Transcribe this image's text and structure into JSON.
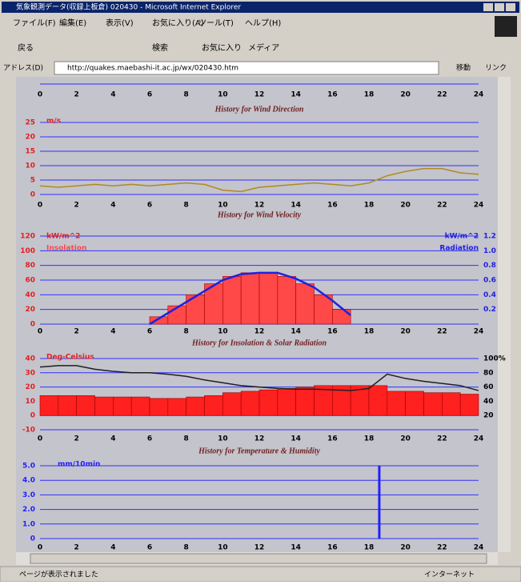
{
  "window": {
    "title": "気象観測データ(収録上板倉) 020430 - Microsoft Internet Explorer"
  },
  "menu": [
    "ファイル(F)",
    "編集(E)",
    "表示(V)",
    "お気に入り(A)",
    "ツール(T)",
    "ヘルプ(H)"
  ],
  "toolbar": [
    "戻る",
    "検索",
    "お気に入り",
    "メディア"
  ],
  "address": {
    "label": "アドレス(D)",
    "url": "http://quakes.maebashi-it.ac.jp/wx/020430.htm",
    "go": "移動",
    "links": "リンク"
  },
  "status": {
    "text": "ページが表示されました",
    "zone": "インターネット"
  },
  "charts": [
    {
      "type": "line",
      "title": "History for Wind Direction",
      "xlim": [
        0,
        24
      ],
      "xticks": [
        0,
        2,
        4,
        6,
        8,
        10,
        12,
        14,
        16,
        18,
        20,
        22,
        24
      ],
      "series": []
    },
    {
      "type": "line",
      "title": "History for Wind Velocity",
      "ylabel": "m/s",
      "xlim": [
        0,
        24
      ],
      "xticks": [
        0,
        2,
        4,
        6,
        8,
        10,
        12,
        14,
        16,
        18,
        20,
        22,
        24
      ],
      "ylim": [
        0,
        25
      ],
      "yticks": [
        0,
        5,
        10,
        15,
        20,
        25
      ],
      "grid": true,
      "series": [
        {
          "type": "line",
          "color": "#b08a20",
          "x": [
            0,
            1,
            2,
            3,
            4,
            5,
            6,
            7,
            8,
            9,
            10,
            11,
            12,
            13,
            14,
            15,
            16,
            17,
            18,
            19,
            20,
            21,
            22,
            23,
            24
          ],
          "values": [
            3,
            2.5,
            3,
            3.5,
            3,
            3.5,
            3,
            3.5,
            4,
            3.5,
            1.5,
            1,
            2.5,
            3,
            3.5,
            4,
            3.5,
            3,
            4,
            6.5,
            8,
            9,
            9,
            7.5,
            7
          ]
        }
      ]
    },
    {
      "type": "bar",
      "title": "History for Insolation & Solar Radiation",
      "ylabel": "kW/m^2",
      "y2label": "kW/m^2",
      "xlim": [
        0,
        24
      ],
      "xticks": [
        0,
        2,
        4,
        6,
        8,
        10,
        12,
        14,
        16,
        18,
        20,
        22,
        24
      ],
      "ylim": [
        0,
        120
      ],
      "yticks": [
        0,
        20,
        40,
        60,
        80,
        100,
        120
      ],
      "y2lim": [
        0,
        1.2
      ],
      "y2ticks": [
        0.2,
        0.4,
        0.6,
        0.8,
        {
          "value": 1,
          "label": "1.0"
        },
        1.2
      ],
      "grid": true,
      "series": [
        {
          "name": "Insolation",
          "type": "bar",
          "color": "#ff4848",
          "x": [
            6,
            7,
            8,
            9,
            10,
            11,
            12,
            13,
            14,
            15,
            16
          ],
          "values": [
            10,
            25,
            40,
            55,
            65,
            70,
            70,
            65,
            55,
            40,
            20
          ]
        },
        {
          "name": "Radiation",
          "type": "line",
          "axis": "y2",
          "color": "#2020e0",
          "x": [
            6,
            7,
            8,
            9,
            10,
            11,
            12,
            13,
            14,
            15,
            16,
            17
          ],
          "values": [
            0,
            0.15,
            0.3,
            0.45,
            0.6,
            0.68,
            0.7,
            0.7,
            0.62,
            0.5,
            0.32,
            0.12
          ]
        }
      ]
    },
    {
      "type": "bar",
      "title": "History for Temperature & Humidity",
      "ylabel": "Deg-Celsius",
      "xlim": [
        0,
        24
      ],
      "xticks": [
        0,
        2,
        4,
        6,
        8,
        10,
        12,
        14,
        16,
        18,
        20,
        22,
        24
      ],
      "ylim": [
        -10,
        40
      ],
      "yticks": [
        -10,
        0,
        10,
        20,
        30,
        40
      ],
      "y2lim": [
        0,
        100
      ],
      "y2ticks": [
        20,
        40,
        60,
        80,
        {
          "value": 100,
          "label": "100%"
        }
      ],
      "grid": true,
      "series": [
        {
          "type": "bar",
          "color": "#ff2020",
          "x": [
            0,
            1,
            2,
            3,
            4,
            5,
            6,
            7,
            8,
            9,
            10,
            11,
            12,
            13,
            14,
            15,
            16,
            17,
            18,
            19,
            20,
            21,
            22,
            23
          ],
          "values": [
            14,
            14,
            14,
            13,
            13,
            13,
            12,
            12,
            13,
            14,
            16,
            17,
            18,
            19,
            20,
            21,
            21,
            21,
            21,
            17,
            17,
            16,
            16,
            15
          ]
        },
        {
          "type": "line",
          "axis": "y2",
          "color": "#202020",
          "x": [
            0,
            1,
            2,
            3,
            4,
            5,
            6,
            7,
            8,
            9,
            10,
            11,
            12,
            13,
            14,
            15,
            16,
            17,
            18,
            19,
            20,
            21,
            22,
            23,
            24
          ],
          "values": [
            88,
            90,
            90,
            85,
            82,
            80,
            80,
            78,
            75,
            70,
            66,
            62,
            60,
            58,
            57,
            57,
            56,
            55,
            58,
            78,
            72,
            68,
            65,
            62,
            55
          ]
        }
      ]
    },
    {
      "type": "bar",
      "ylabel": "mm/10min",
      "xlim": [
        0,
        24
      ],
      "xticks": [
        0,
        2,
        4,
        6,
        8,
        10,
        12,
        14,
        16,
        18,
        20,
        22,
        24
      ],
      "ylim": [
        0,
        5
      ],
      "yticks": [
        0,
        {
          "value": 1,
          "label": "1.0"
        },
        {
          "value": 2,
          "label": "2.0"
        },
        {
          "value": 3,
          "label": "3.0"
        },
        {
          "value": 4,
          "label": "4.0"
        },
        {
          "value": 5,
          "label": "5.0"
        }
      ],
      "grid": true,
      "series": [
        {
          "type": "bar",
          "color": "#2020ff",
          "x": [
            18.5
          ],
          "values": [
            5
          ]
        }
      ]
    }
  ]
}
